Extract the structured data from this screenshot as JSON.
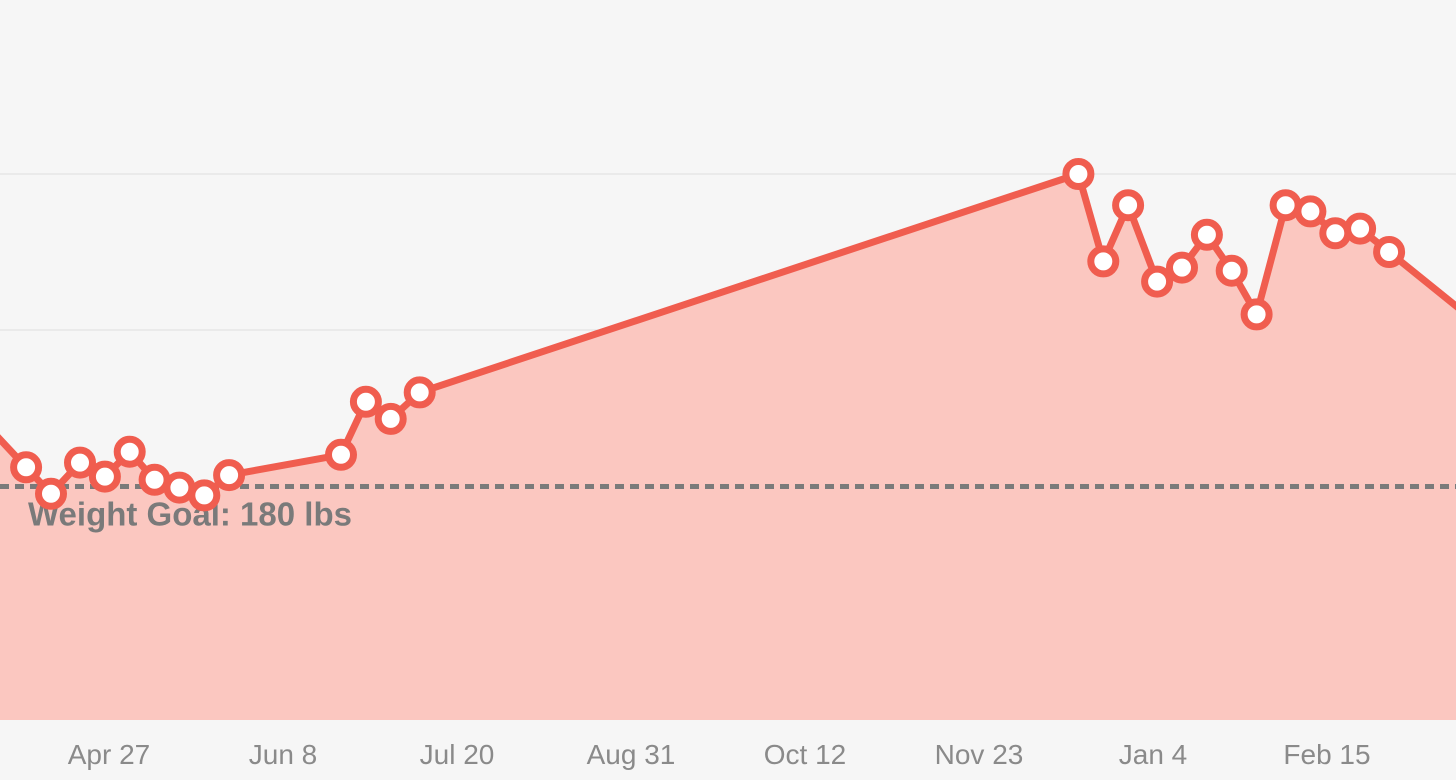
{
  "chart_data": {
    "type": "area",
    "title": "",
    "xlabel": "",
    "ylabel": "",
    "x_tick_labels": [
      "Apr 27",
      "Jun 8",
      "Jul 20",
      "Aug 31",
      "Oct 12",
      "Nov 23",
      "Jan 4",
      "Feb 15"
    ],
    "goal": {
      "label": "Weight Goal: 180 lbs",
      "value": 180
    },
    "ylim": [
      165,
      202
    ],
    "grid": true,
    "colors": {
      "line": "#f05d4f",
      "fill": "#fbc7c0",
      "goal": "#7a7a7a",
      "grid": "#dddddd",
      "marker_fill": "#ffffff"
    },
    "series": [
      {
        "x": [
          "Apr 7",
          "Apr 13",
          "Apr 20",
          "Apr 26",
          "May 2",
          "May 8",
          "May 14",
          "May 20",
          "May 26",
          "Jun 22",
          "Jun 28",
          "Jul 4",
          "Jul 11",
          "Dec 17",
          "Dec 23",
          "Dec 29",
          "Jan 5",
          "Jan 11",
          "Jan 17",
          "Jan 23",
          "Jan 29",
          "Feb 5",
          "Feb 11",
          "Feb 17",
          "Feb 23",
          "Mar 1"
        ],
        "values": [
          181.2,
          179.5,
          181.5,
          180.6,
          182.2,
          180.4,
          179.9,
          179.4,
          180.7,
          182.0,
          185.4,
          184.3,
          186.0,
          200.0,
          194.4,
          198.0,
          193.1,
          194.0,
          196.1,
          193.8,
          191.0,
          198.0,
          197.6,
          196.2,
          196.5,
          195.0
        ]
      }
    ]
  }
}
